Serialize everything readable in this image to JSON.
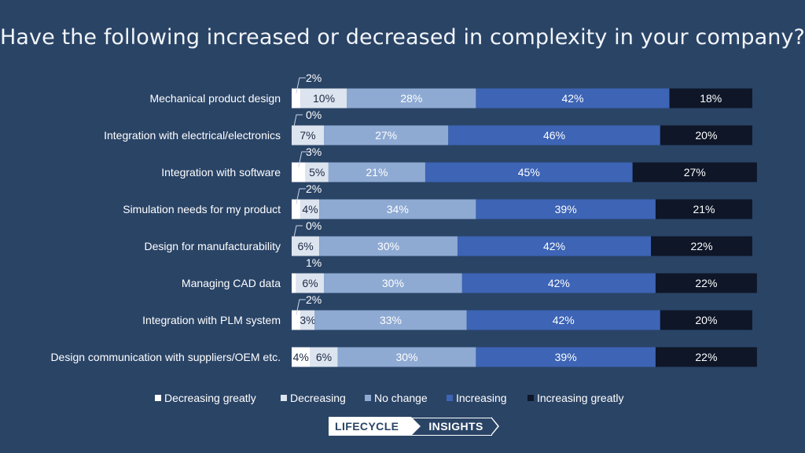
{
  "chart_data": {
    "type": "bar",
    "stacked": "100%",
    "orientation": "horizontal",
    "title": "Have the following increased or decreased in complexity in your company?",
    "categories": [
      "Mechanical product design",
      "Integration with electrical/electronics",
      "Integration with software",
      "Simulation needs for my product",
      "Design for manufacturability",
      "Managing CAD data",
      "Integration with PLM system",
      "Design communication with suppliers/OEM etc."
    ],
    "series": [
      {
        "name": "Decreasing greatly",
        "color": "#ffffff",
        "values": [
          2,
          0,
          3,
          2,
          0,
          1,
          2,
          4
        ],
        "labels": [
          "2%",
          "0%",
          "3%",
          "2%",
          "0%",
          "1%",
          "2%",
          "4%"
        ]
      },
      {
        "name": "Decreasing",
        "color": "#dce4ef",
        "values": [
          10,
          7,
          5,
          4,
          6,
          6,
          3,
          6
        ],
        "labels": [
          "10%",
          "7%",
          "5%",
          "4%",
          "6%",
          "6%",
          "3%",
          "6%"
        ]
      },
      {
        "name": "No change",
        "color": "#8eaad3",
        "values": [
          28,
          27,
          21,
          34,
          30,
          30,
          33,
          30
        ],
        "labels": [
          "28%",
          "27%",
          "21%",
          "34%",
          "30%",
          "30%",
          "33%",
          "30%"
        ]
      },
      {
        "name": "Increasing",
        "color": "#3d64b5",
        "values": [
          42,
          46,
          45,
          39,
          42,
          42,
          42,
          39
        ],
        "labels": [
          "42%",
          "46%",
          "45%",
          "39%",
          "42%",
          "42%",
          "42%",
          "39%"
        ]
      },
      {
        "name": "Increasing greatly",
        "color": "#0e1628",
        "values": [
          18,
          20,
          27,
          21,
          22,
          22,
          20,
          22
        ],
        "labels": [
          "18%",
          "20%",
          "27%",
          "21%",
          "22%",
          "22%",
          "20%",
          "22%"
        ]
      }
    ],
    "legend_position": "bottom",
    "xlim": [
      0,
      100
    ]
  },
  "brand": {
    "word1": "LIFECYCLE",
    "word2": "INSIGHTS"
  },
  "colors": {
    "background": "#2a4466",
    "label_dark": "#1c2a44",
    "label_light": "#ffffff"
  }
}
